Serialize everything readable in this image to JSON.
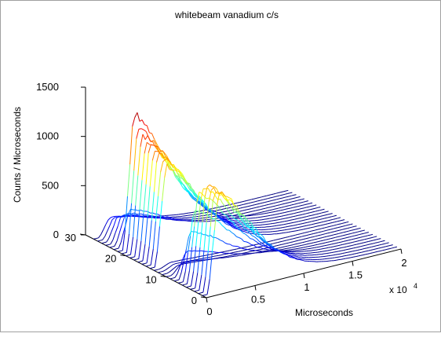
{
  "chart_data": {
    "type": "line",
    "style": "3d-waterfall",
    "title": "whitebeam vanadium c/s",
    "xlabel": "Microseconds",
    "ylabel": "",
    "zlabel": "Counts / Microseconds",
    "x_exponent_label": "x 10",
    "x_exponent_power": "4",
    "x_ticks": [
      "0",
      "0.5",
      "1",
      "1.5",
      "2"
    ],
    "y_ticks": [
      "0",
      "10",
      "20",
      "30"
    ],
    "z_ticks": [
      "0",
      "500",
      "1000",
      "1500"
    ],
    "xlim": [
      0,
      20000
    ],
    "ylim": [
      0,
      30
    ],
    "zlim": [
      0,
      1500
    ],
    "colormap": "jet",
    "grid": false,
    "series_count": 28
  }
}
